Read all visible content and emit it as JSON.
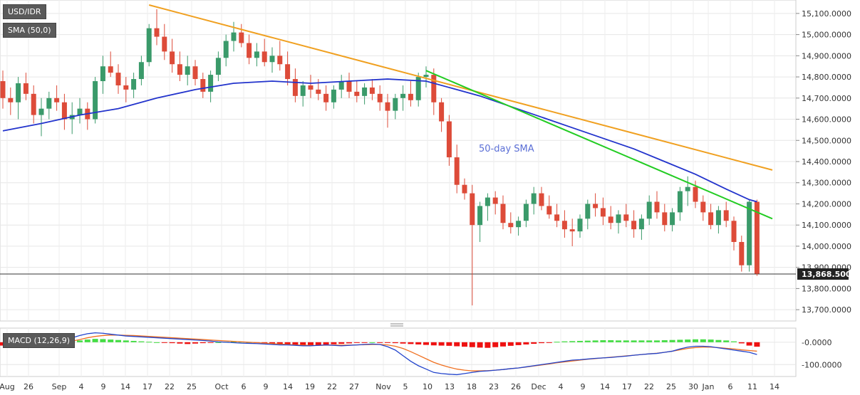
{
  "chart_data": {
    "type": "candlestick",
    "instrument": "USD/IDR",
    "legend": {
      "main": "USD/IDR",
      "sma": "SMA (50,0)",
      "macd": "MACD (12,26,9)"
    },
    "annotation": "50-day SMA",
    "current_price": 13868.5,
    "current_price_label": "13,868.5000",
    "y_ticks": [
      15100,
      15000,
      14900,
      14800,
      14700,
      14600,
      14500,
      14400,
      14300,
      14200,
      14100,
      14000,
      13900,
      13800,
      13700
    ],
    "y_tick_labels": [
      "15,100.0000",
      "15,000.0000",
      "14,900.0000",
      "14,800.0000",
      "14,700.0000",
      "14,600.0000",
      "14,500.0000",
      "14,400.0000",
      "14,300.0000",
      "14,200.0000",
      "14,100.0000",
      "14,000.0000",
      "13,900.0000",
      "13,800.0000",
      "13,700.0000"
    ],
    "ylim": [
      13650,
      15150
    ],
    "x_tick_labels": [
      "Aug",
      "26",
      "Sep",
      "4",
      "9",
      "14",
      "17",
      "22",
      "25",
      "Oct",
      "6",
      "9",
      "14",
      "19",
      "22",
      "27",
      "Nov",
      "5",
      "10",
      "13",
      "18",
      "23",
      "26",
      "Dec",
      "4",
      "9",
      "14",
      "17",
      "22",
      "25",
      "30",
      "Jan",
      "6",
      "11",
      "14"
    ],
    "candles": [
      [
        14780,
        14830,
        14650,
        14700
      ],
      [
        14700,
        14750,
        14620,
        14680
      ],
      [
        14680,
        14800,
        14600,
        14770
      ],
      [
        14770,
        14820,
        14690,
        14720
      ],
      [
        14720,
        14760,
        14580,
        14620
      ],
      [
        14620,
        14700,
        14520,
        14650
      ],
      [
        14650,
        14730,
        14600,
        14700
      ],
      [
        14700,
        14760,
        14640,
        14680
      ],
      [
        14680,
        14720,
        14550,
        14600
      ],
      [
        14600,
        14680,
        14530,
        14620
      ],
      [
        14620,
        14700,
        14580,
        14650
      ],
      [
        14650,
        14680,
        14550,
        14600
      ],
      [
        14600,
        14800,
        14580,
        14780
      ],
      [
        14780,
        14900,
        14720,
        14850
      ],
      [
        14850,
        14920,
        14800,
        14820
      ],
      [
        14820,
        14860,
        14720,
        14760
      ],
      [
        14760,
        14800,
        14680,
        14740
      ],
      [
        14740,
        14820,
        14700,
        14790
      ],
      [
        14790,
        14900,
        14760,
        14870
      ],
      [
        14870,
        15050,
        14850,
        15030
      ],
      [
        15030,
        15120,
        14950,
        14990
      ],
      [
        14990,
        15050,
        14880,
        14920
      ],
      [
        14920,
        14980,
        14820,
        14860
      ],
      [
        14860,
        14920,
        14780,
        14810
      ],
      [
        14810,
        14900,
        14760,
        14850
      ],
      [
        14850,
        14880,
        14760,
        14790
      ],
      [
        14790,
        14820,
        14700,
        14730
      ],
      [
        14730,
        14830,
        14680,
        14810
      ],
      [
        14810,
        14920,
        14780,
        14890
      ],
      [
        14890,
        15000,
        14850,
        14970
      ],
      [
        14970,
        15060,
        14920,
        15010
      ],
      [
        15010,
        15050,
        14940,
        14960
      ],
      [
        14960,
        15000,
        14860,
        14890
      ],
      [
        14890,
        14960,
        14850,
        14920
      ],
      [
        14920,
        14980,
        14850,
        14870
      ],
      [
        14870,
        14940,
        14820,
        14900
      ],
      [
        14900,
        14970,
        14830,
        14860
      ],
      [
        14860,
        14920,
        14760,
        14790
      ],
      [
        14790,
        14840,
        14680,
        14710
      ],
      [
        14710,
        14780,
        14660,
        14760
      ],
      [
        14760,
        14810,
        14700,
        14740
      ],
      [
        14740,
        14790,
        14690,
        14720
      ],
      [
        14720,
        14760,
        14640,
        14680
      ],
      [
        14680,
        14760,
        14650,
        14740
      ],
      [
        14740,
        14810,
        14700,
        14780
      ],
      [
        14780,
        14820,
        14700,
        14730
      ],
      [
        14730,
        14780,
        14680,
        14710
      ],
      [
        14710,
        14770,
        14670,
        14750
      ],
      [
        14750,
        14790,
        14690,
        14720
      ],
      [
        14720,
        14760,
        14640,
        14680
      ],
      [
        14680,
        14720,
        14560,
        14640
      ],
      [
        14640,
        14720,
        14600,
        14700
      ],
      [
        14700,
        14760,
        14640,
        14720
      ],
      [
        14720,
        14780,
        14660,
        14690
      ],
      [
        14690,
        14820,
        14660,
        14800
      ],
      [
        14800,
        14850,
        14750,
        14810
      ],
      [
        14810,
        14840,
        14620,
        14680
      ],
      [
        14680,
        14700,
        14540,
        14590
      ],
      [
        14590,
        14620,
        14380,
        14420
      ],
      [
        14420,
        14480,
        14250,
        14290
      ],
      [
        14290,
        14320,
        14220,
        14250
      ],
      [
        14250,
        14290,
        13720,
        14100
      ],
      [
        14100,
        14210,
        14020,
        14190
      ],
      [
        14190,
        14250,
        14120,
        14230
      ],
      [
        14230,
        14260,
        14150,
        14200
      ],
      [
        14200,
        14240,
        14080,
        14110
      ],
      [
        14110,
        14160,
        14060,
        14090
      ],
      [
        14090,
        14140,
        14050,
        14120
      ],
      [
        14120,
        14220,
        14090,
        14200
      ],
      [
        14200,
        14280,
        14150,
        14250
      ],
      [
        14250,
        14280,
        14170,
        14190
      ],
      [
        14190,
        14240,
        14130,
        14150
      ],
      [
        14150,
        14200,
        14090,
        14120
      ],
      [
        14120,
        14170,
        14040,
        14080
      ],
      [
        14080,
        14130,
        14000,
        14070
      ],
      [
        14070,
        14150,
        14040,
        14130
      ],
      [
        14130,
        14220,
        14080,
        14200
      ],
      [
        14200,
        14250,
        14140,
        14180
      ],
      [
        14180,
        14230,
        14100,
        14140
      ],
      [
        14140,
        14190,
        14080,
        14110
      ],
      [
        14110,
        14170,
        14060,
        14150
      ],
      [
        14150,
        14200,
        14090,
        14120
      ],
      [
        14120,
        14170,
        14040,
        14080
      ],
      [
        14080,
        14150,
        14030,
        14130
      ],
      [
        14130,
        14240,
        14100,
        14210
      ],
      [
        14210,
        14260,
        14130,
        14160
      ],
      [
        14160,
        14200,
        14070,
        14100
      ],
      [
        14100,
        14180,
        14070,
        14160
      ],
      [
        14160,
        14280,
        14120,
        14260
      ],
      [
        14260,
        14330,
        14190,
        14280
      ],
      [
        14280,
        14310,
        14180,
        14210
      ],
      [
        14210,
        14240,
        14120,
        14160
      ],
      [
        14160,
        14200,
        14080,
        14100
      ],
      [
        14100,
        14190,
        14060,
        14170
      ],
      [
        14170,
        14210,
        14090,
        14120
      ],
      [
        14120,
        14140,
        13980,
        14020
      ],
      [
        14020,
        14050,
        13880,
        13910
      ],
      [
        13910,
        14220,
        13880,
        14210
      ],
      [
        14210,
        14220,
        13860,
        13870
      ]
    ],
    "sma": [
      [
        0,
        14545
      ],
      [
        5,
        14580
      ],
      [
        10,
        14620
      ],
      [
        15,
        14650
      ],
      [
        20,
        14700
      ],
      [
        25,
        14740
      ],
      [
        30,
        14770
      ],
      [
        35,
        14780
      ],
      [
        40,
        14770
      ],
      [
        45,
        14780
      ],
      [
        50,
        14790
      ],
      [
        55,
        14780
      ],
      [
        58,
        14750
      ],
      [
        62,
        14710
      ],
      [
        66,
        14660
      ],
      [
        70,
        14610
      ],
      [
        74,
        14560
      ],
      [
        78,
        14510
      ],
      [
        82,
        14460
      ],
      [
        86,
        14400
      ],
      [
        90,
        14340
      ],
      [
        94,
        14270
      ],
      [
        97,
        14220
      ],
      [
        98,
        14210
      ]
    ],
    "trendlines": [
      {
        "color": "#f0a020",
        "points": [
          [
            19,
            15140
          ],
          [
            100,
            14360
          ]
        ]
      },
      {
        "color": "#22cc22",
        "points": [
          [
            55,
            14830
          ],
          [
            100,
            14130
          ]
        ]
      }
    ],
    "macd": {
      "ylim": [
        -150,
        60
      ],
      "y_ticks": [
        0,
        -100
      ],
      "y_tick_labels": [
        "-0.0000",
        "-100.0000"
      ],
      "histogram": [
        -15,
        -17,
        -18,
        -16,
        -14,
        -12,
        -10,
        -5,
        0,
        3,
        8,
        12,
        15,
        14,
        12,
        10,
        8,
        6,
        4,
        2,
        0,
        -2,
        -4,
        -6,
        -8,
        -6,
        -4,
        -2,
        0,
        2,
        3,
        2,
        0,
        -2,
        -4,
        -6,
        -8,
        -10,
        -12,
        -14,
        -15,
        -13,
        -11,
        -9,
        -7,
        -5,
        -3,
        -1,
        0,
        -1,
        -2,
        -4,
        -6,
        -8,
        -10,
        -12,
        -14,
        -15,
        -16,
        -18,
        -20,
        -22,
        -24,
        -25,
        -22,
        -19,
        -16,
        -13,
        -10,
        -7,
        -4,
        -1,
        2,
        4,
        5,
        6,
        7,
        8,
        9,
        9,
        8,
        8,
        8,
        8,
        8,
        8,
        9,
        10,
        11,
        12,
        13,
        13,
        12,
        10,
        8,
        4,
        -5,
        -15,
        -20
      ],
      "macd_line": [
        -15,
        -18,
        -20,
        -18,
        -14,
        -10,
        -5,
        2,
        10,
        20,
        30,
        38,
        42,
        40,
        36,
        32,
        28,
        26,
        24,
        22,
        20,
        18,
        16,
        14,
        12,
        10,
        8,
        5,
        2,
        0,
        -2,
        -4,
        -5,
        -6,
        -8,
        -10,
        -12,
        -12,
        -14,
        -16,
        -16,
        -14,
        -12,
        -14,
        -16,
        -14,
        -12,
        -10,
        -8,
        -10,
        -20,
        -35,
        -60,
        -85,
        -105,
        -120,
        -135,
        -140,
        -143,
        -145,
        -140,
        -135,
        -130,
        -128,
        -125,
        -122,
        -118,
        -115,
        -110,
        -105,
        -100,
        -95,
        -90,
        -85,
        -80,
        -78,
        -75,
        -72,
        -70,
        -68,
        -65,
        -62,
        -58,
        -55,
        -52,
        -50,
        -45,
        -40,
        -30,
        -22,
        -18,
        -18,
        -20,
        -25,
        -30,
        -35,
        -40,
        -45,
        -55
      ],
      "signal_line": [
        5,
        3,
        1,
        -2,
        -4,
        -5,
        -5,
        -3,
        0,
        5,
        12,
        20,
        26,
        30,
        32,
        32,
        31,
        30,
        28,
        26,
        24,
        22,
        20,
        18,
        16,
        14,
        12,
        10,
        8,
        6,
        4,
        2,
        0,
        -2,
        -4,
        -6,
        -8,
        -10,
        -12,
        -13,
        -14,
        -14,
        -13,
        -13,
        -13,
        -13,
        -12,
        -11,
        -10,
        -10,
        -12,
        -18,
        -28,
        -42,
        -58,
        -74,
        -90,
        -102,
        -112,
        -120,
        -125,
        -128,
        -128,
        -127,
        -125,
        -122,
        -118,
        -115,
        -111,
        -106,
        -102,
        -97,
        -92,
        -88,
        -84,
        -80,
        -76,
        -73,
        -70,
        -67,
        -64,
        -61,
        -58,
        -55,
        -52,
        -49,
        -45,
        -40,
        -34,
        -28,
        -24,
        -22,
        -22,
        -24,
        -27,
        -30,
        -34,
        -37,
        -40
      ]
    }
  }
}
